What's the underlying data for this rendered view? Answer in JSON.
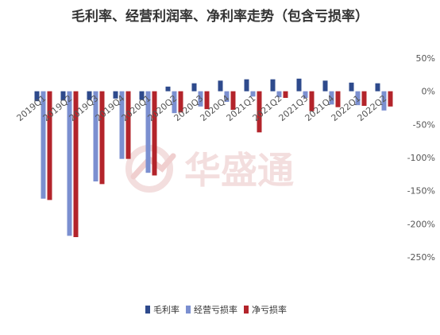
{
  "chart_data": {
    "type": "bar",
    "title": "毛利率、经营利润率、净利率走势（包含亏损率）",
    "categories": [
      "2019Q1",
      "2019Q2",
      "2019Q3",
      "2019Q4",
      "2020Q1",
      "2020Q2",
      "2020Q3",
      "2020Q4",
      "2021Q1",
      "2021Q2",
      "2021Q3",
      "2021Q4",
      "2022Q1",
      "2022Q2"
    ],
    "series": [
      {
        "name": "毛利率",
        "color": "#2e4a8c",
        "values": [
          -15,
          -14,
          -13,
          -11,
          -13,
          7,
          12,
          16,
          18,
          18,
          19,
          16,
          13,
          12
        ]
      },
      {
        "name": "经营亏损率",
        "color": "#7b8fd0",
        "values": [
          -162,
          -218,
          -136,
          -102,
          -123,
          -33,
          -23,
          -16,
          -8,
          -9,
          -10,
          -20,
          -21,
          -29
        ]
      },
      {
        "name": "净亏损率",
        "color": "#b3242b",
        "values": [
          -164,
          -220,
          -140,
          -102,
          -127,
          -32,
          -27,
          -28,
          -62,
          -10,
          -30,
          -24,
          -22,
          -23
        ]
      }
    ],
    "yticks": [
      "50%",
      "0%",
      "-50%",
      "-100%",
      "-150%",
      "-200%",
      "-250%"
    ],
    "ylim": [
      -250,
      50
    ],
    "unit": "%",
    "legend_position": "bottom",
    "grid": false
  },
  "watermark": "华盛通"
}
